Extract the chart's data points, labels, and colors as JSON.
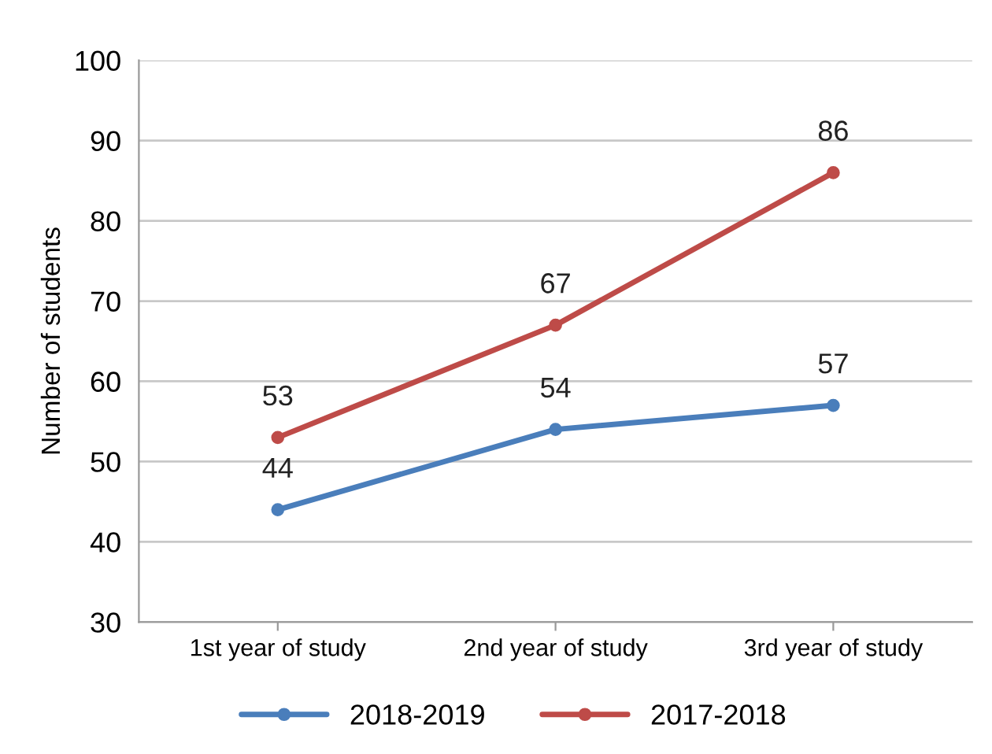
{
  "chart_data": {
    "type": "line",
    "ylabel": "Number of students",
    "categories": [
      "1st year of study",
      "2nd year of study",
      "3rd year of study"
    ],
    "series": [
      {
        "name": "2018-2019",
        "color": "#4a7ebb",
        "values": [
          44,
          54,
          57
        ]
      },
      {
        "name": "2017-2018",
        "color": "#be4b48",
        "values": [
          53,
          67,
          86
        ]
      }
    ],
    "ylim": [
      30,
      100
    ],
    "yticks": [
      30,
      40,
      50,
      60,
      70,
      80,
      90,
      100
    ],
    "grid": "y",
    "legend": "bottom",
    "marker": "circle",
    "line_style": "solid",
    "data_labels": true
  }
}
